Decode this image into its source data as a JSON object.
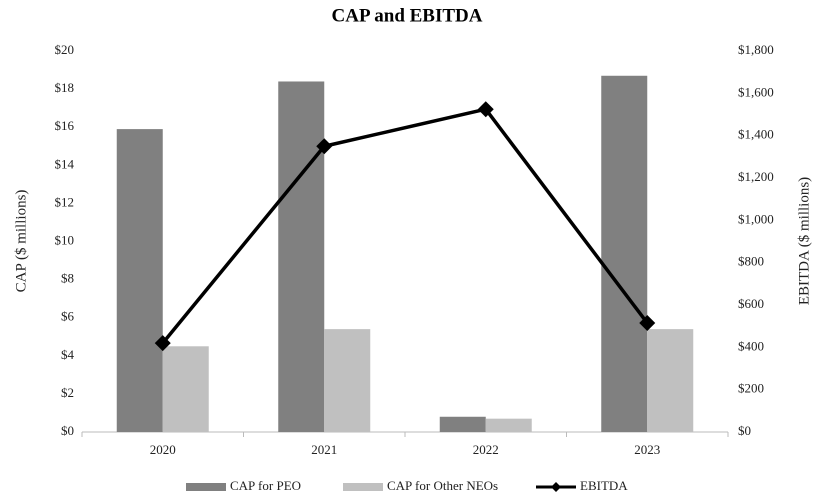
{
  "chart_data": {
    "type": "bar",
    "title": "CAP and EBITDA",
    "categories": [
      "2020",
      "2021",
      "2022",
      "2023"
    ],
    "ylabel": "CAP ($ millions)",
    "y2label": "EBITDA ($ millions)",
    "ylim": [
      0,
      20
    ],
    "yticks": [
      {
        "value": 0,
        "label": "$0"
      },
      {
        "value": 2,
        "label": "$2"
      },
      {
        "value": 4,
        "label": "$4"
      },
      {
        "value": 6,
        "label": "$6"
      },
      {
        "value": 8,
        "label": "$8"
      },
      {
        "value": 10,
        "label": "$10"
      },
      {
        "value": 12,
        "label": "$12"
      },
      {
        "value": 14,
        "label": "$14"
      },
      {
        "value": 16,
        "label": "$16"
      },
      {
        "value": 18,
        "label": "$18"
      },
      {
        "value": 20,
        "label": "$20"
      }
    ],
    "y2lim": [
      0,
      1800
    ],
    "y2ticks": [
      {
        "value": 0,
        "label": "$0"
      },
      {
        "value": 200,
        "label": "$200"
      },
      {
        "value": 400,
        "label": "$400"
      },
      {
        "value": 600,
        "label": "$600"
      },
      {
        "value": 800,
        "label": "$800"
      },
      {
        "value": 1000,
        "label": "$1,000"
      },
      {
        "value": 1200,
        "label": "$1,200"
      },
      {
        "value": 1400,
        "label": "$1,400"
      },
      {
        "value": 1600,
        "label": "$1,600"
      },
      {
        "value": 1800,
        "label": "$1,800"
      }
    ],
    "legend": "bottom",
    "series": [
      {
        "name": "CAP for PEO",
        "type": "bar",
        "color": "#808080",
        "values": [
          15.9,
          18.4,
          0.8,
          18.7
        ]
      },
      {
        "name": "CAP for Other NEOs",
        "type": "bar",
        "color": "#c0c0c0",
        "values": [
          4.5,
          5.4,
          0.7,
          5.4
        ]
      },
      {
        "name": "EBITDA",
        "type": "line",
        "axis": "y2",
        "color": "#000000",
        "values": [
          420,
          1350,
          1525,
          515
        ]
      }
    ]
  }
}
